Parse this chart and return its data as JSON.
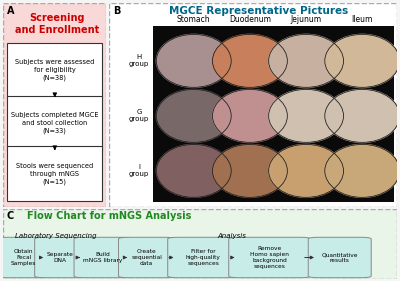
{
  "fig_width": 4.0,
  "fig_height": 2.81,
  "dpi": 100,
  "background": "#f5f5f5",
  "panel_A": {
    "title": "Screening\nand Enrollment",
    "title_color": "#cc0000",
    "bg_color": "#f9d8d8",
    "border_color": "#aaaaaa",
    "label": "A",
    "boxes": [
      "Subjects were assessed\nfor eligibility\n(N=38)",
      "Subjects completed MGCE\nand stool collection\n(N=33)",
      "Stools were sequenced\nthrough mNGS\n(N=15)"
    ],
    "box_bg": "#ffffff",
    "box_border": "#333333"
  },
  "panel_B": {
    "title": "MGCE Representative Pictures",
    "title_color": "#006688",
    "label": "B",
    "col_labels": [
      "Stomach",
      "Duodenum",
      "Jejunum",
      "Ileum"
    ],
    "row_labels": [
      "H\ngroup",
      "G\ngroup",
      "I\ngroup"
    ],
    "bg_color": "#000000",
    "circle_colors": [
      [
        "#a89090",
        "#c8805c",
        "#c8b0a0",
        "#d0b898"
      ],
      [
        "#786868",
        "#c09090",
        "#d0c0b0",
        "#d0c0b0"
      ],
      [
        "#806060",
        "#a07050",
        "#c8a070",
        "#c8a878"
      ]
    ]
  },
  "panel_C": {
    "title": "Flow Chart for mNGS Analysis",
    "title_color": "#228822",
    "label": "C",
    "lab_sequencing": "Laboratory Sequencing",
    "lab_analysis": "Analysis",
    "bg_color": "#e8f5e8",
    "border_color": "#aaaaaa",
    "box_bg": "#c8ece8",
    "box_border": "#888888",
    "arrow_color": "#333333",
    "boxes": [
      "Obtain\nFecal\nSamples",
      "Separate\nDNA",
      "Build\nmNGS library",
      "Create\nsequential\ndata",
      "Filter for\nhigh-quality\nsequences",
      "Remove\nHomo sapien\nbackground\nsequences",
      "Quantitative\nresults"
    ]
  }
}
